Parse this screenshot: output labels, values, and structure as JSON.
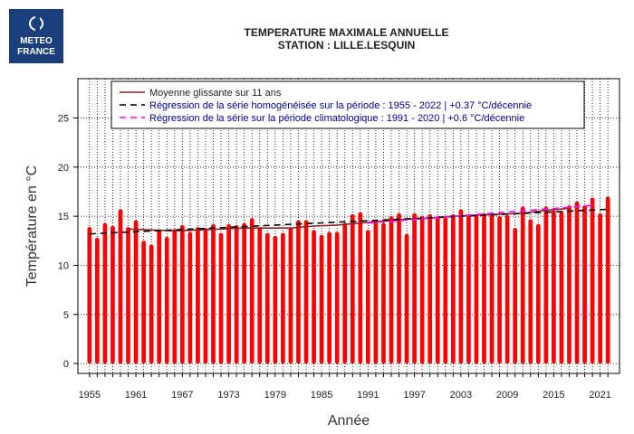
{
  "logo": {
    "line1": "METEO",
    "line2": "FRANCE"
  },
  "title": "TEMPERATURE MAXIMALE ANNUELLE",
  "subtitle": "STATION : LILLE.LESQUIN",
  "colors": {
    "bar": "#ff0000",
    "moving_avg": "#8b2323",
    "trend_homog": "#000000",
    "trend_clim": "#ff00ff",
    "legend_text": "#00008b"
  },
  "chart_data": {
    "type": "bar",
    "xlabel": "Année",
    "ylabel": "Température en °C",
    "ylim": [
      -1,
      29
    ],
    "xlim": [
      1953.5,
      2023.5
    ],
    "yticks": [
      0,
      5,
      10,
      15,
      20,
      25
    ],
    "xticks": [
      1955,
      1961,
      1967,
      1973,
      1979,
      1985,
      1991,
      1997,
      2003,
      2009,
      2015,
      2021
    ],
    "grid": true,
    "legend_placement": "top",
    "years": [
      1955,
      1956,
      1957,
      1958,
      1959,
      1960,
      1961,
      1962,
      1963,
      1964,
      1965,
      1966,
      1967,
      1968,
      1969,
      1970,
      1971,
      1972,
      1973,
      1974,
      1975,
      1976,
      1977,
      1978,
      1979,
      1980,
      1981,
      1982,
      1983,
      1984,
      1985,
      1986,
      1987,
      1988,
      1989,
      1990,
      1991,
      1992,
      1993,
      1994,
      1995,
      1996,
      1997,
      1998,
      1999,
      2000,
      2001,
      2002,
      2003,
      2004,
      2005,
      2006,
      2007,
      2008,
      2009,
      2010,
      2011,
      2012,
      2013,
      2014,
      2015,
      2016,
      2017,
      2018,
      2019,
      2020,
      2021,
      2022
    ],
    "values": [
      13.9,
      12.8,
      14.3,
      14.0,
      15.7,
      13.9,
      14.6,
      12.5,
      12.1,
      13.6,
      12.9,
      13.7,
      14.1,
      13.4,
      13.9,
      13.8,
      14.2,
      13.3,
      14.2,
      14.1,
      14.3,
      14.8,
      13.9,
      13.3,
      13.0,
      13.3,
      13.8,
      14.6,
      14.6,
      13.6,
      13.1,
      13.4,
      13.4,
      14.3,
      15.2,
      15.4,
      13.6,
      14.4,
      14.3,
      15.0,
      15.3,
      13.2,
      15.3,
      15.0,
      15.2,
      15.0,
      14.9,
      15.2,
      15.7,
      15.1,
      15.2,
      15.3,
      15.3,
      15.0,
      15.1,
      13.8,
      16.0,
      14.7,
      14.2,
      16.0,
      15.6,
      15.5,
      16.1,
      16.5,
      16.1,
      16.9,
      15.3,
      17.0
    ],
    "series": [
      {
        "name": "Moyenne glissante sur 11 ans",
        "style": "solid",
        "x": [
          1960,
          1963,
          1966,
          1969,
          1972,
          1975,
          1978,
          1981,
          1984,
          1987,
          1990,
          1993,
          1996,
          1999,
          2002,
          2005,
          2008,
          2011,
          2014,
          2017
        ],
        "y": [
          13.7,
          13.6,
          13.5,
          13.6,
          13.7,
          13.8,
          13.8,
          13.8,
          14.0,
          14.1,
          14.3,
          14.5,
          14.7,
          14.8,
          15.0,
          15.1,
          15.2,
          15.3,
          15.6,
          15.8
        ]
      },
      {
        "name": "Régression de la série homogénéisée sur la période : 1955 - 2022 | +0.37 °C/décennie",
        "style": "dashed",
        "x": [
          1955,
          2022
        ],
        "y": [
          13.2,
          15.7
        ]
      },
      {
        "name": "Régression de la série sur la période climatologique : 1991 - 2020 | +0.6 °C/décennie",
        "style": "dashed",
        "x": [
          1991,
          2020
        ],
        "y": [
          14.3,
          16.1
        ]
      }
    ]
  }
}
